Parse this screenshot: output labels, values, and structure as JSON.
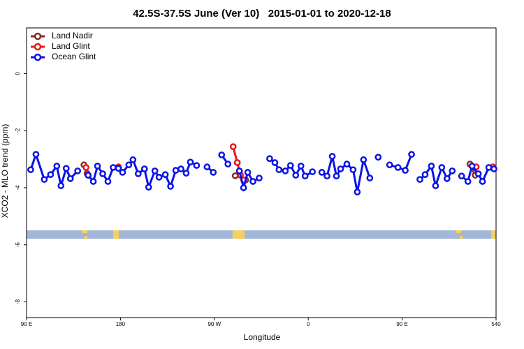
{
  "chart_data": {
    "type": "line",
    "title": "42.5S-37.5S June (Ver 10)   2015-01-01 to 2020-12-18",
    "xlabel": "Longitude",
    "ylabel": "XCO2 - MLO trend (ppm)",
    "xlim": [
      90,
      540
    ],
    "ylim": [
      -8.55,
      1.6
    ],
    "xticks": [
      {
        "value": 90,
        "label": "90 E"
      },
      180,
      {
        "value": 270,
        "label": "90 W"
      },
      {
        "value": 360,
        "label": "0"
      },
      {
        "value": 450,
        "label": "90 E"
      },
      540
    ],
    "yticks": [
      0,
      -2,
      -4,
      -6,
      -8
    ],
    "legend": "top-left",
    "series": [
      {
        "name": "Land Nadir",
        "color": "#8b2a2a",
        "x": [
          145,
          148,
          200,
          290,
          294,
          297,
          300,
          400,
          515,
          520
        ],
        "values": [
          -3.2,
          -3.5,
          null,
          -3.58,
          -3.42,
          null,
          -3.73,
          null,
          -3.17,
          -3.56
        ]
      },
      {
        "name": "Land Glint",
        "color": "#e8141a",
        "x": [
          147,
          149,
          160,
          178,
          230,
          288,
          292,
          295,
          298,
          400,
          521,
          530,
          537
        ],
        "values": [
          -3.29,
          -3.56,
          null,
          -3.27,
          null,
          -2.56,
          -3.12,
          -3.56,
          -3.73,
          null,
          -3.27,
          null,
          -3.27
        ]
      },
      {
        "name": "Ocean Glint",
        "color": "#0a14e6",
        "x": [
          94,
          99,
          107,
          113,
          119,
          123,
          128,
          132,
          139,
          144,
          149,
          154,
          158,
          163,
          168,
          173,
          178,
          182,
          188,
          192,
          197,
          203,
          207,
          213,
          217,
          223,
          228,
          233,
          238,
          243,
          247,
          253,
          258,
          263,
          269,
          273,
          277,
          283,
          288,
          294,
          298,
          302,
          307,
          313,
          318,
          323,
          328,
          332,
          338,
          343,
          348,
          353,
          357,
          364,
          368,
          373,
          378,
          383,
          387,
          391,
          397,
          403,
          407,
          413,
          419,
          423,
          427,
          432,
          438,
          446,
          453,
          459,
          463,
          467,
          472,
          478,
          482,
          488,
          493,
          498,
          502,
          507,
          513,
          517,
          523,
          527,
          533,
          538
        ],
        "values": [
          -3.37,
          -2.83,
          -3.71,
          -3.54,
          -3.24,
          -3.93,
          -3.32,
          -3.68,
          -3.41,
          null,
          -3.56,
          -3.78,
          -3.24,
          -3.51,
          -3.78,
          -3.29,
          -3.32,
          -3.46,
          -3.2,
          -3.02,
          -3.51,
          -3.34,
          -3.98,
          -3.41,
          -3.63,
          -3.54,
          -3.95,
          -3.39,
          -3.34,
          -3.49,
          -3.1,
          -3.22,
          null,
          -3.27,
          -3.46,
          null,
          -2.85,
          -3.17,
          null,
          -3.41,
          -4.0,
          -3.46,
          -3.78,
          -3.66,
          null,
          -2.98,
          -3.12,
          -3.37,
          -3.41,
          -3.22,
          -3.56,
          -3.24,
          -3.59,
          -3.44,
          null,
          -3.46,
          -3.59,
          -2.9,
          -3.59,
          -3.34,
          -3.17,
          -3.37,
          -4.15,
          -3.02,
          -3.66,
          null,
          -2.93,
          null,
          -3.2,
          -3.29,
          -3.39,
          -2.83,
          null,
          -3.71,
          -3.54,
          -3.24,
          -3.93,
          -3.29,
          -3.68,
          -3.41,
          null,
          -3.59,
          -3.78,
          -3.24,
          -3.51,
          -3.78,
          -3.29,
          -3.34
        ]
      }
    ]
  }
}
